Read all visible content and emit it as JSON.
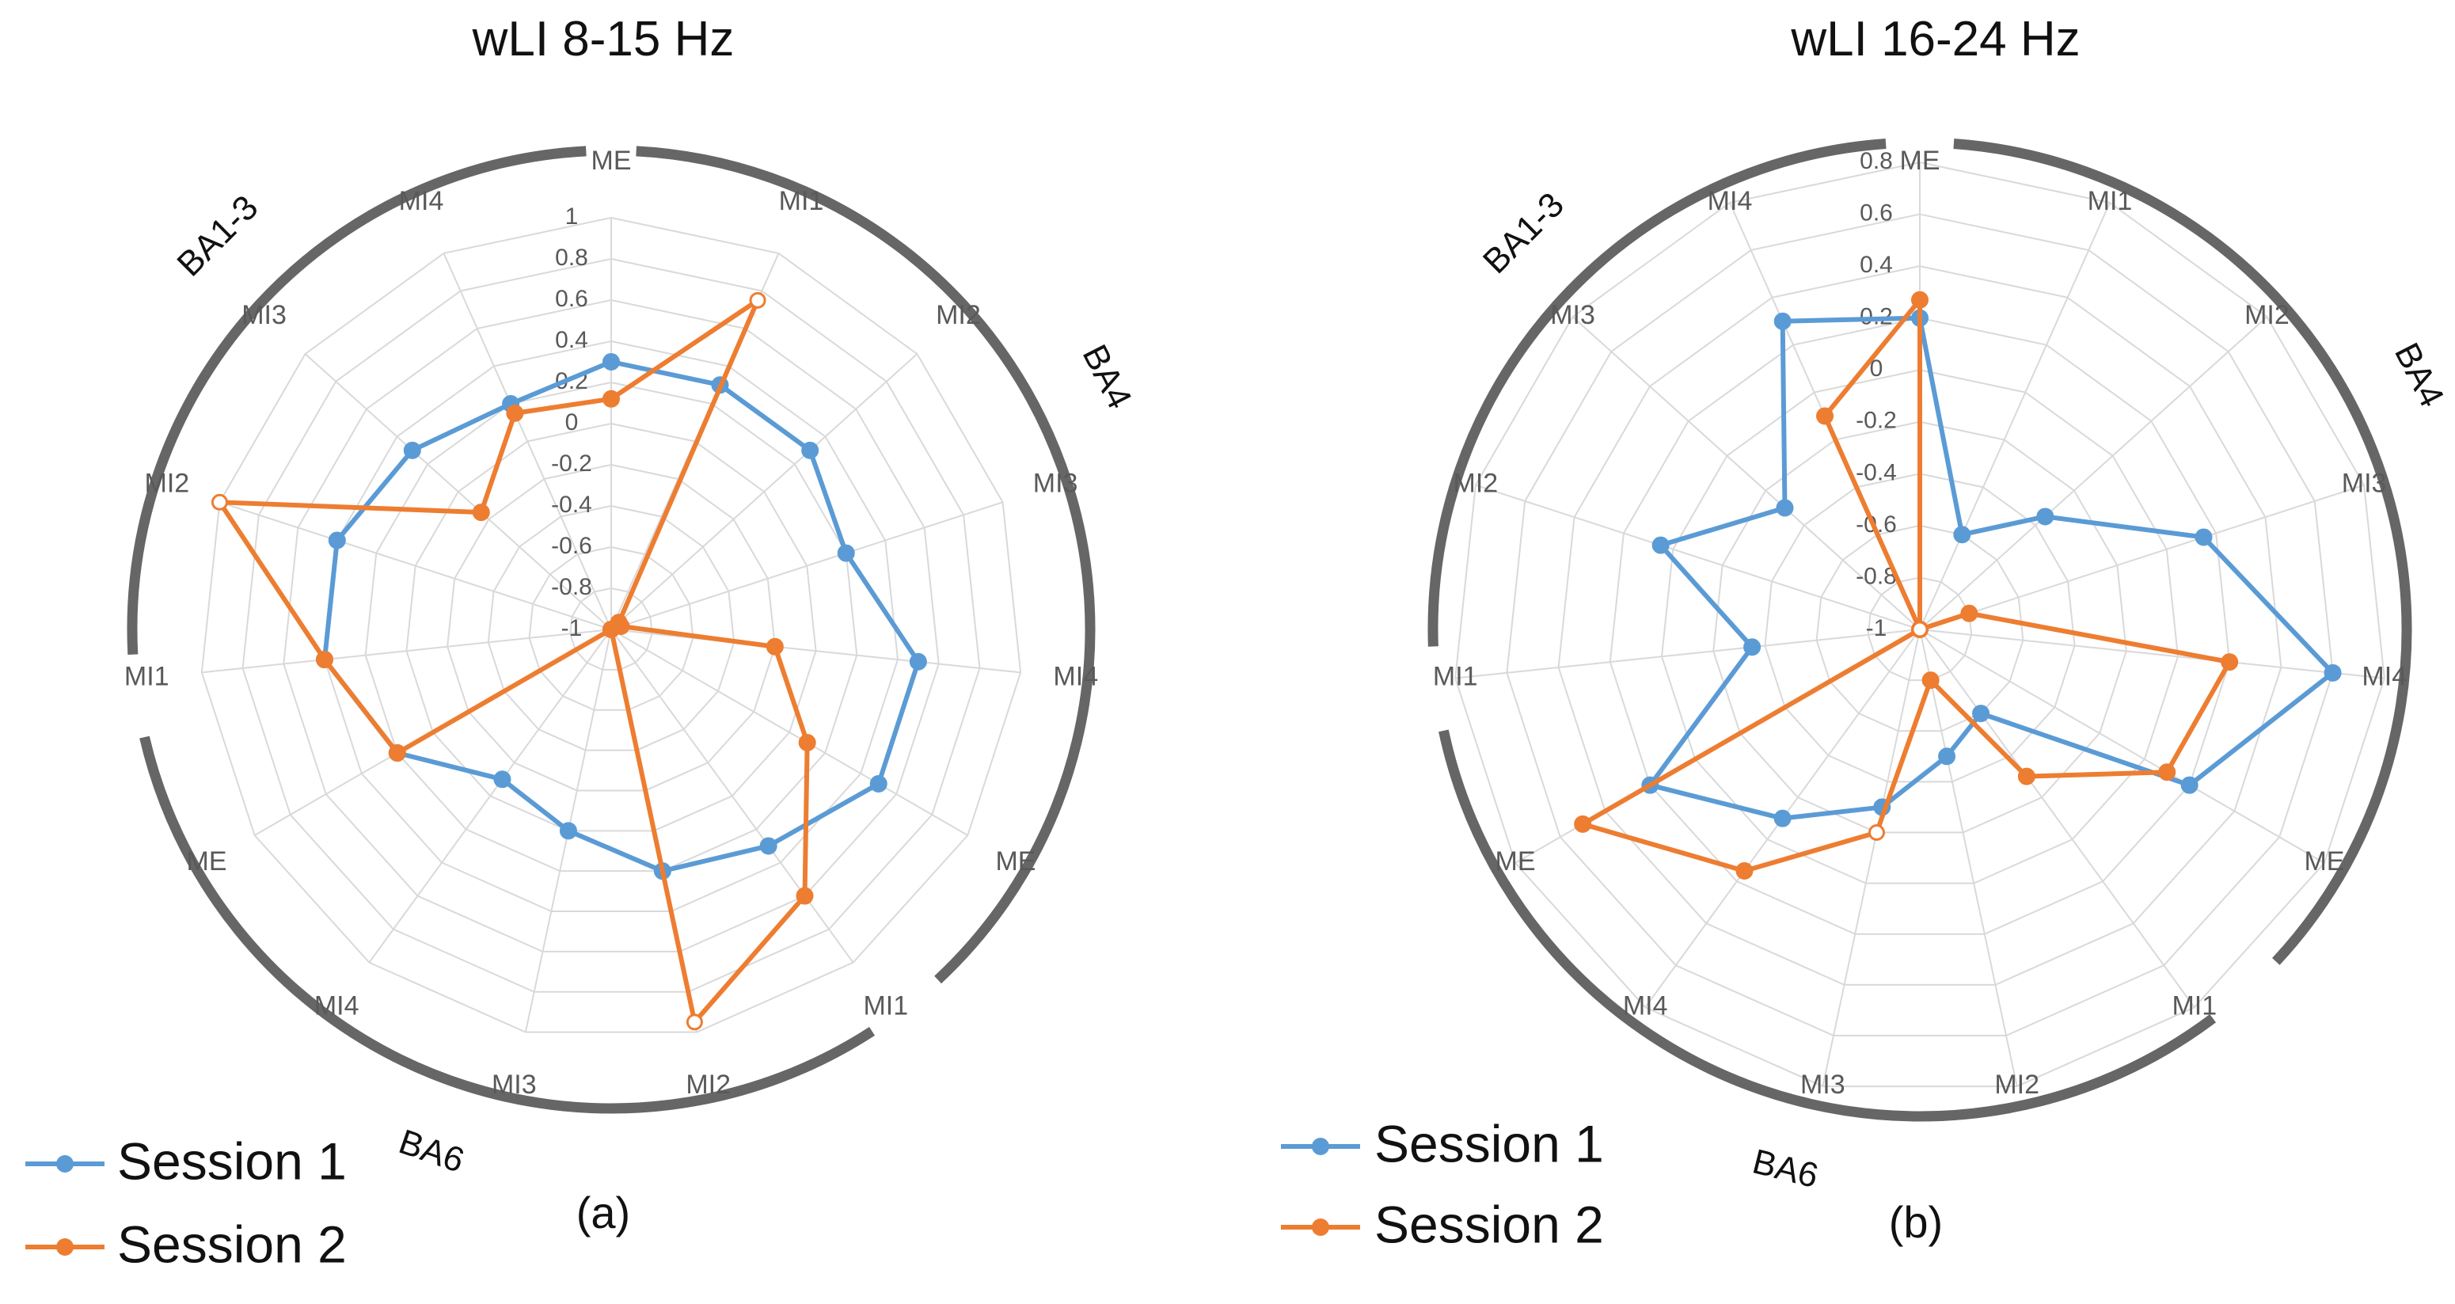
{
  "colors": {
    "session1": "#5B9BD5",
    "session2": "#ED7D31",
    "grid": "#D9D9D9",
    "arc": "#666666"
  },
  "chart_data": [
    {
      "type": "radar",
      "title": "wLI 8-15 Hz",
      "panel_label": "(a)",
      "categories": [
        "ME",
        "MI1",
        "MI2",
        "MI3",
        "MI4",
        "ME",
        "MI1",
        "MI2",
        "MI3",
        "MI4",
        "ME",
        "MI1",
        "MI2",
        "MI3",
        "MI4"
      ],
      "r_ticks": [
        "1",
        "0.8",
        "0.6",
        "0.4",
        "0.2",
        "0",
        "-0.2",
        "-0.4",
        "-0.6",
        "-0.8",
        "-1"
      ],
      "r_range": [
        -1,
        1
      ],
      "regions": [
        {
          "label": "BA4",
          "categories": [
            "MI1",
            "MI2",
            "MI3",
            "MI4",
            "ME"
          ]
        },
        {
          "label": "BA6",
          "categories": [
            "MI1",
            "MI2",
            "MI3",
            "MI4",
            "ME"
          ]
        },
        {
          "label": "BA1-3",
          "categories": [
            "MI1",
            "MI2",
            "MI3",
            "MI4",
            "ME"
          ]
        }
      ],
      "series": [
        {
          "name": "Session 1",
          "values": [
            0.3,
            0.3,
            0.3,
            0.2,
            0.5,
            0.5,
            0.3,
            0.2,
            0.0,
            -0.1,
            0.2,
            0.4,
            0.4,
            0.3,
            0.2
          ],
          "hollow_markers": []
        },
        {
          "name": "Session 2",
          "values": [
            0.12,
            0.75,
            -0.95,
            -0.95,
            -0.2,
            0.1,
            0.6,
            0.95,
            -1,
            -1,
            0.2,
            0.4,
            1.0,
            -0.15,
            0.15
          ],
          "hollow_markers": [
            1,
            7,
            12
          ]
        }
      ]
    },
    {
      "type": "radar",
      "title": "wLI 16-24 Hz",
      "panel_label": "(b)",
      "categories": [
        "ME",
        "MI1",
        "MI2",
        "MI3",
        "MI4",
        "ME",
        "MI1",
        "MI2",
        "MI3",
        "MI4",
        "ME",
        "MI1",
        "MI2",
        "MI3",
        "MI4"
      ],
      "r_ticks": [
        "0.8",
        "0.6",
        "0.4",
        "0.2",
        "0",
        "-0.2",
        "-0.4",
        "-0.6",
        "-0.8",
        "-1"
      ],
      "r_range": [
        -1,
        0.8
      ],
      "regions": [
        {
          "label": "BA4",
          "categories": [
            "MI1",
            "MI2",
            "MI3",
            "MI4",
            "ME"
          ]
        },
        {
          "label": "BA6",
          "categories": [
            "MI1",
            "MI2",
            "MI3",
            "MI4",
            "ME"
          ]
        },
        {
          "label": "BA1-3",
          "categories": [
            "MI1",
            "MI2",
            "MI3",
            "MI4",
            "ME"
          ]
        }
      ],
      "series": [
        {
          "name": "Session 1",
          "values": [
            0.2,
            -0.6,
            -0.35,
            0.15,
            0.6,
            0.2,
            -0.6,
            -0.5,
            -0.3,
            -0.1,
            0.2,
            -0.35,
            0.05,
            -0.3,
            0.3
          ],
          "hollow_markers": []
        },
        {
          "name": "Session 2",
          "values": [
            0.27,
            -1,
            -1,
            -0.8,
            0.2,
            0.1,
            -0.3,
            -0.8,
            -0.2,
            0.15,
            0.5,
            -1,
            -1,
            -1,
            -0.1
          ],
          "hollow_markers": [
            2,
            8,
            13
          ]
        }
      ]
    }
  ]
}
